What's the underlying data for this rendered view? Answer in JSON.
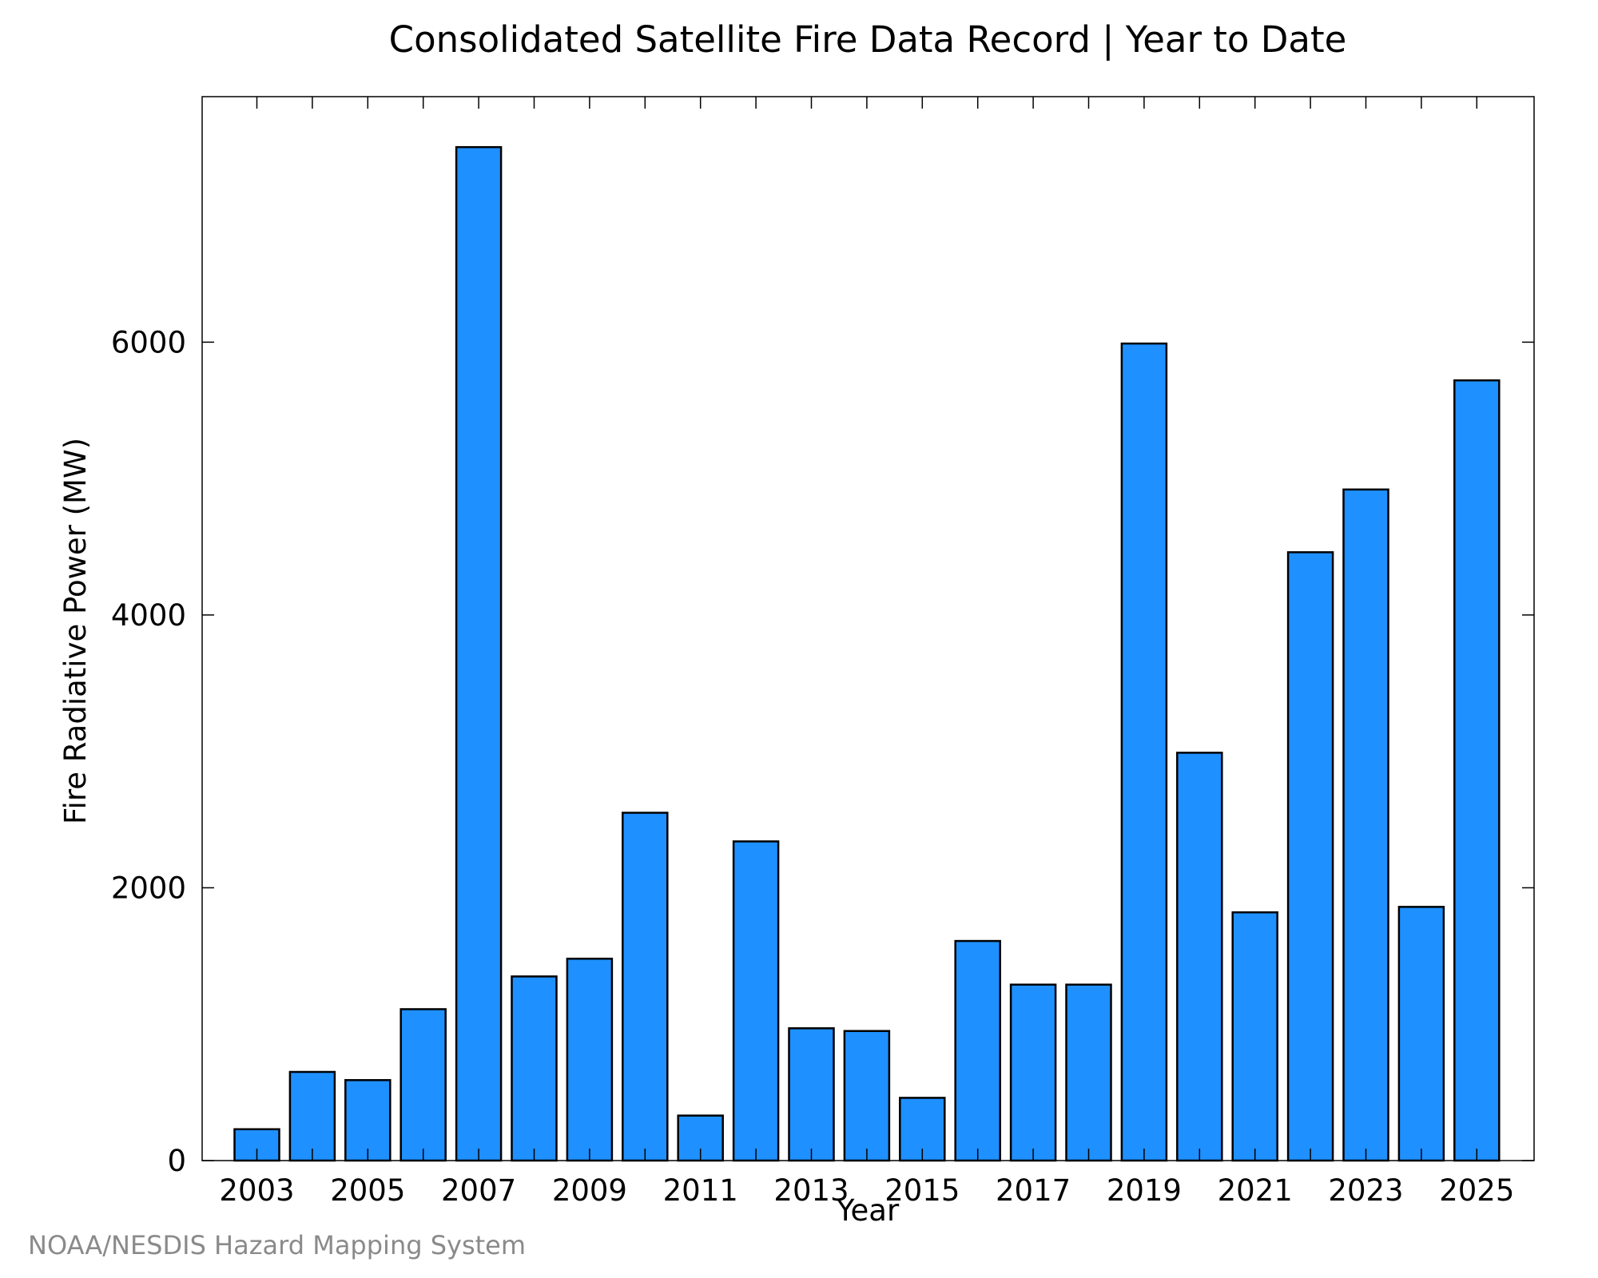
{
  "chart_data": {
    "type": "bar",
    "title": "Consolidated Satellite Fire Data Record | Year to Date",
    "xlabel": "Year",
    "ylabel": "Fire Radiative Power (MW)",
    "categories": [
      "2003",
      "2004",
      "2005",
      "2006",
      "2007",
      "2008",
      "2009",
      "2010",
      "2011",
      "2012",
      "2013",
      "2014",
      "2015",
      "2016",
      "2017",
      "2018",
      "2019",
      "2020",
      "2021",
      "2022",
      "2023",
      "2024",
      "2025"
    ],
    "values": [
      230,
      650,
      590,
      1110,
      7430,
      1350,
      1480,
      2550,
      330,
      2340,
      970,
      950,
      460,
      1610,
      1290,
      1290,
      5990,
      2990,
      1820,
      4460,
      4920,
      1860,
      5720
    ],
    "x_tick_labels": [
      "2003",
      "2005",
      "2007",
      "2009",
      "2011",
      "2013",
      "2015",
      "2017",
      "2019",
      "2021",
      "2023",
      "2025"
    ],
    "y_ticks": [
      0,
      2000,
      4000,
      6000
    ],
    "ylim": [
      0,
      7800
    ],
    "grid": false,
    "bar_color": "#1e90ff",
    "bar_edge_color": "#000000"
  },
  "credit": "NOAA/NESDIS Hazard Mapping System"
}
